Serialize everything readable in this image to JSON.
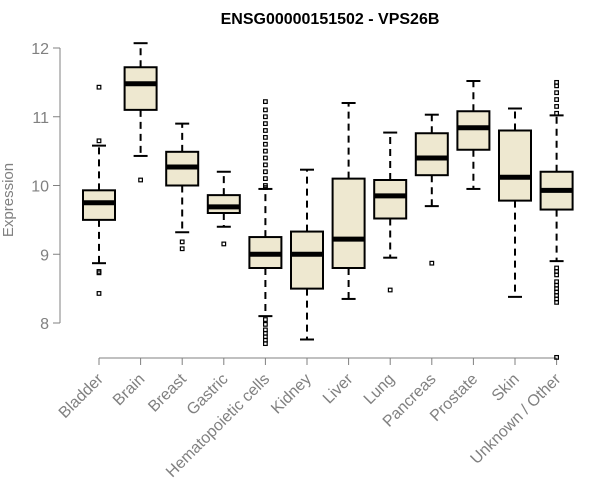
{
  "chart_data": {
    "type": "boxplot",
    "title": "ENSG00000151502 - VPS26B",
    "xlabel": "",
    "ylabel": "Expression",
    "ylim": [
      7.4,
      12.2
    ],
    "yticks": [
      8,
      9,
      10,
      11,
      12
    ],
    "box_fill": "#EEE8D0",
    "categories": [
      "Bladder",
      "Brain",
      "Breast",
      "Gastric",
      "Hematopoietic cells",
      "Kidney",
      "Liver",
      "Lung",
      "Pancreas",
      "Prostate",
      "Skin",
      "Unknown / Other"
    ],
    "boxes": [
      {
        "name": "Bladder",
        "whislo": 8.87,
        "q1": 9.5,
        "med": 9.75,
        "q3": 9.93,
        "whishi": 10.58,
        "fliers": [
          11.43,
          10.65,
          8.75,
          8.73,
          8.43
        ]
      },
      {
        "name": "Brain",
        "whislo": 10.43,
        "q1": 11.1,
        "med": 11.48,
        "q3": 11.72,
        "whishi": 12.07,
        "fliers": [
          10.08
        ]
      },
      {
        "name": "Breast",
        "whislo": 9.32,
        "q1": 10.0,
        "med": 10.27,
        "q3": 10.49,
        "whishi": 10.9,
        "fliers": [
          9.18,
          9.08
        ]
      },
      {
        "name": "Gastric",
        "whislo": 9.4,
        "q1": 9.6,
        "med": 9.69,
        "q3": 9.86,
        "whishi": 10.2,
        "fliers": [
          9.15
        ]
      },
      {
        "name": "Hematopoietic cells",
        "whislo": 8.1,
        "q1": 8.8,
        "med": 9.0,
        "q3": 9.25,
        "whishi": 9.95,
        "fliers": [
          11.22,
          11.1,
          11.0,
          10.9,
          10.8,
          10.7,
          10.6,
          10.5,
          10.4,
          10.3,
          10.2,
          10.1,
          10.0,
          9.97,
          8.05,
          7.98,
          7.9,
          7.85,
          7.8,
          7.75,
          7.7
        ]
      },
      {
        "name": "Kidney",
        "whislo": 7.76,
        "q1": 8.5,
        "med": 9.0,
        "q3": 9.33,
        "whishi": 10.23,
        "fliers": []
      },
      {
        "name": "Liver",
        "whislo": 8.35,
        "q1": 8.8,
        "med": 9.22,
        "q3": 10.1,
        "whishi": 11.2,
        "fliers": []
      },
      {
        "name": "Lung",
        "whislo": 8.95,
        "q1": 9.52,
        "med": 9.85,
        "q3": 10.08,
        "whishi": 10.77,
        "fliers": [
          8.48
        ]
      },
      {
        "name": "Pancreas",
        "whislo": 9.7,
        "q1": 10.15,
        "med": 10.4,
        "q3": 10.76,
        "whishi": 11.03,
        "fliers": [
          8.87
        ]
      },
      {
        "name": "Prostate",
        "whislo": 9.95,
        "q1": 10.52,
        "med": 10.84,
        "q3": 11.08,
        "whishi": 11.52,
        "fliers": []
      },
      {
        "name": "Skin",
        "whislo": 8.38,
        "q1": 9.78,
        "med": 10.12,
        "q3": 10.8,
        "whishi": 11.12,
        "fliers": []
      },
      {
        "name": "Unknown / Other",
        "whislo": 8.9,
        "q1": 9.65,
        "med": 9.93,
        "q3": 10.2,
        "whishi": 11.02,
        "fliers": [
          11.5,
          11.45,
          11.35,
          11.25,
          11.15,
          11.05,
          8.8,
          8.75,
          8.7,
          8.6,
          8.55,
          8.5,
          8.45,
          8.4,
          8.35,
          8.3,
          7.5
        ]
      }
    ]
  }
}
